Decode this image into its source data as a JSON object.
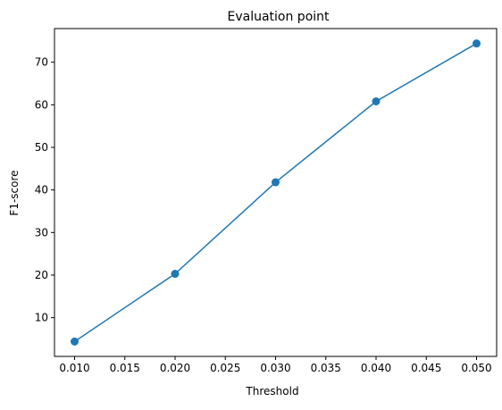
{
  "chart_data": {
    "type": "line",
    "title": "Evaluation point",
    "xlabel": "Threshold",
    "ylabel": "F1-score",
    "x": [
      0.01,
      0.02,
      0.03,
      0.04,
      0.05
    ],
    "series": [
      {
        "values": [
          4.4,
          20.3,
          41.8,
          60.8,
          74.4
        ],
        "color": "#1f77b4",
        "marker": "circle"
      }
    ],
    "xlim": [
      0.008,
      0.052
    ],
    "ylim": [
      0.9,
      77.9
    ],
    "xticks": [
      "0.010",
      "0.015",
      "0.020",
      "0.025",
      "0.030",
      "0.035",
      "0.040",
      "0.045",
      "0.050"
    ],
    "yticks": [
      "10",
      "20",
      "30",
      "40",
      "50",
      "60",
      "70"
    ],
    "grid": false,
    "legend": "none"
  }
}
